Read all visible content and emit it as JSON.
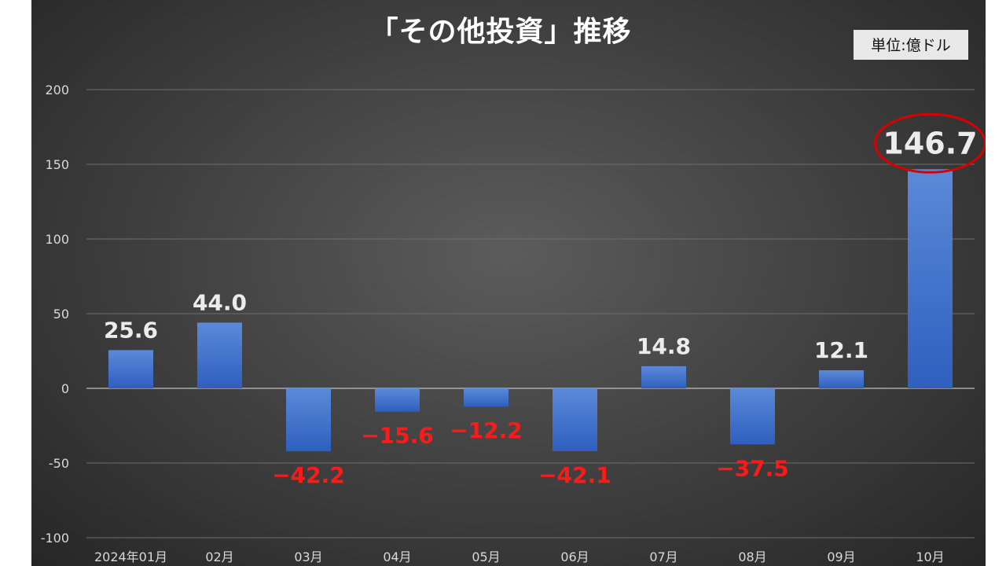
{
  "colors": {
    "bar": "#4472c4",
    "positive_label": "#ececec",
    "negative_label": "#ff1a1a",
    "highlight_ring": "#d90000",
    "background": "#404040"
  },
  "chart_data": {
    "type": "bar",
    "title": "「その他投資」推移",
    "unit": "単位:億ドル",
    "categories": [
      "2024年01月",
      "02月",
      "03月",
      "04月",
      "05月",
      "06月",
      "07月",
      "08月",
      "09月",
      "10月"
    ],
    "values": [
      25.6,
      44.0,
      -42.2,
      -15.6,
      -12.2,
      -42.1,
      14.8,
      -37.5,
      12.1,
      146.7
    ],
    "data_labels": [
      "25.6",
      "44.0",
      "−42.2",
      "−15.6",
      "−12.2",
      "−42.1",
      "14.8",
      "−37.5",
      "12.1",
      "146.7"
    ],
    "ylim": [
      -100,
      200
    ],
    "yticks": [
      "200",
      "150",
      "100",
      "50",
      "0",
      "-50",
      "-100"
    ],
    "ytick_values": [
      200,
      150,
      100,
      50,
      0,
      -50,
      -100
    ],
    "grid": true,
    "legend": "none",
    "highlight_index": 9
  }
}
